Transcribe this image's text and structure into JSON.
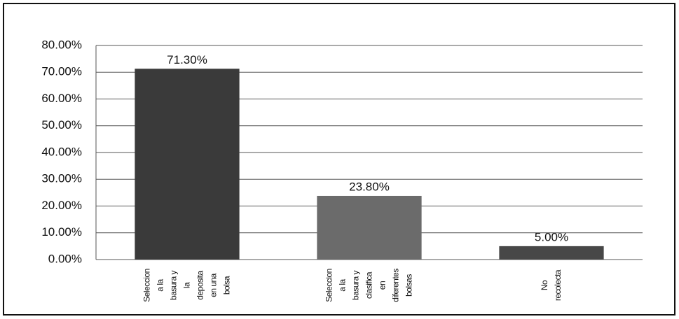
{
  "chart_data": {
    "type": "bar",
    "categories": [
      "Seleccion\na la\nbasura y\nla\ndeposita\nen una\nbolsa",
      "Seleccion\na la\nbasura y\nclasifica\nen\ndiferentes\nbolsas",
      "No\nrecolecta"
    ],
    "values": [
      71.3,
      23.8,
      5.0
    ],
    "value_labels": [
      "71.30%",
      "23.80%",
      "5.00%"
    ],
    "colors": [
      "#3a3a3a",
      "#6b6b6b",
      "#474747"
    ],
    "ylim": [
      0,
      80
    ],
    "yticks": [
      {
        "value": 0,
        "label": "0.00%"
      },
      {
        "value": 10,
        "label": "10.00%"
      },
      {
        "value": 20,
        "label": "20.00%"
      },
      {
        "value": 30,
        "label": "30.00%"
      },
      {
        "value": 40,
        "label": "40.00%"
      },
      {
        "value": 50,
        "label": "50.00%"
      },
      {
        "value": 60,
        "label": "60.00%"
      },
      {
        "value": 70,
        "label": "70.00%"
      },
      {
        "value": 80,
        "label": "80.00%"
      }
    ],
    "grid": true
  }
}
